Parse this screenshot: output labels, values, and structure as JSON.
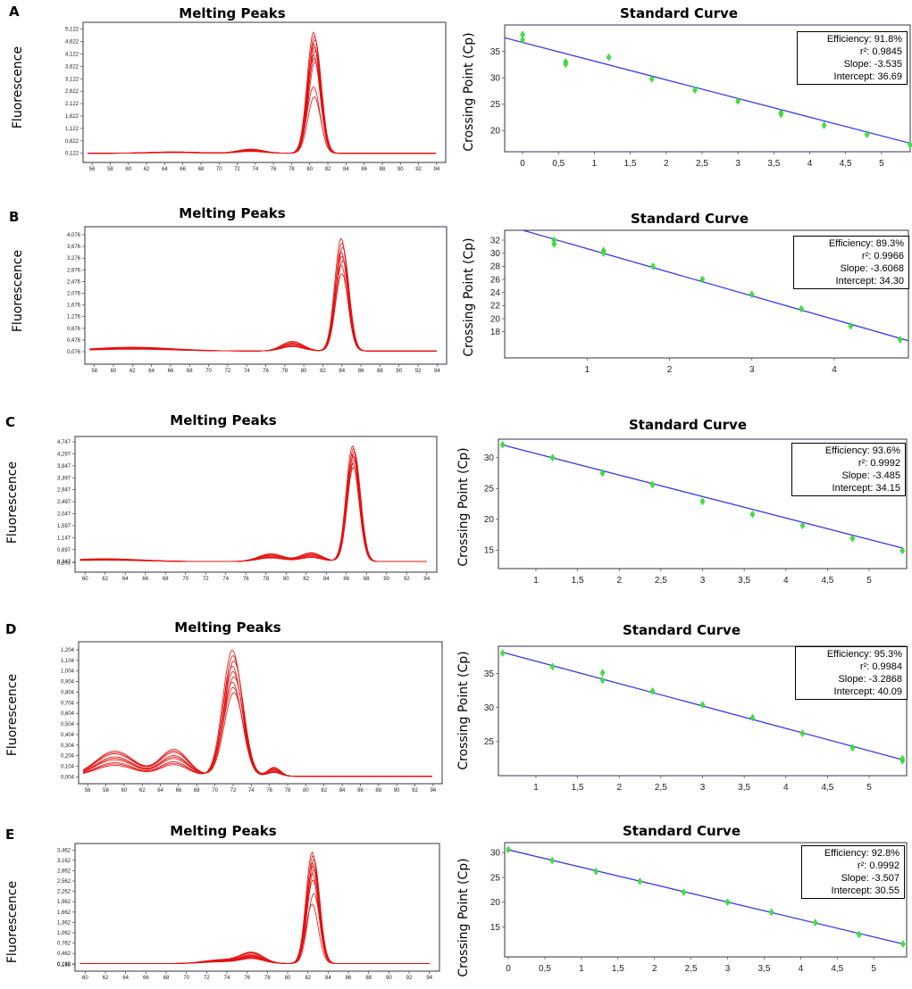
{
  "colors": {
    "melt_line": "#e41010",
    "std_line": "#3a3ae6",
    "std_point": "#39e639",
    "frame": "#33334a"
  },
  "panels": [
    {
      "letter": "A",
      "melting": {
        "title": "Melting Peaks",
        "ylabel": "Fluorescence"
      },
      "standard": {
        "title": "Standard Curve",
        "ylabel": "Crossing Point (Cp)",
        "stats": {
          "efficiency": "Efficiency: 91.8%",
          "r2": "r²: 0.9845",
          "slope": "Slope: -3.535",
          "intercept": "Intercept: 36.69"
        }
      }
    },
    {
      "letter": "B",
      "melting": {
        "title": "Melting Peaks",
        "ylabel": "Fluorescence"
      },
      "standard": {
        "title": "Standard Curve",
        "ylabel": "Crossing Point (Cp)",
        "stats": {
          "efficiency": "Efficiency: 89.3%",
          "r2": "r²: 0.9966",
          "slope": "Slope: -3.6068",
          "intercept": "Intercept: 34.30"
        }
      }
    },
    {
      "letter": "C",
      "melting": {
        "title": "Melting Peaks",
        "ylabel": "Fluorescence"
      },
      "standard": {
        "title": "Standard Curve",
        "ylabel": "Crossing Point (Cp)",
        "stats": {
          "efficiency": "Efficiency: 93.6%",
          "r2": "r²: 0.9992",
          "slope": "Slope: -3.485",
          "intercept": "Intercept: 34.15"
        }
      }
    },
    {
      "letter": "D",
      "melting": {
        "title": "Melting Peaks",
        "ylabel": "Fluorescence"
      },
      "standard": {
        "title": "Standard Curve",
        "ylabel": "Crossing Point (Cp)",
        "stats": {
          "efficiency": "Efficiency: 95.3%",
          "r2": "r²: 0.9984",
          "slope": "Slope: -3.2868",
          "intercept": "Intercept: 40.09"
        }
      }
    },
    {
      "letter": "E",
      "melting": {
        "title": "Melting Peaks",
        "ylabel": "Fluorescence"
      },
      "standard": {
        "title": "Standard Curve",
        "ylabel": "Crossing Point (Cp)",
        "stats": {
          "efficiency": "Efficiency: 92.8%",
          "r2": "r²: 0.9992",
          "slope": "Slope: -3.507",
          "intercept": "Intercept: 30.55"
        }
      }
    }
  ],
  "chart_data": [
    {
      "id": "A-melt",
      "type": "line",
      "title": "Melting Peaks",
      "xlabel": "",
      "ylabel": "Fluorescence",
      "xlim": [
        55,
        95
      ],
      "ylim": [
        -0.25,
        5.4
      ],
      "xticks": [
        "56",
        "58",
        "60",
        "62",
        "64",
        "66",
        "68",
        "70",
        "72",
        "74",
        "76",
        "78",
        "80",
        "82",
        "84",
        "86",
        "88",
        "90",
        "92",
        "94"
      ],
      "yticks": [
        "0,122",
        "0,622",
        "1,122",
        "1,622",
        "2,122",
        "2,622",
        "3,122",
        "3,622",
        "4,122",
        "4,622",
        "5,122"
      ],
      "peak_x": 80.5,
      "peak_width": 1.0,
      "peak_heights": [
        5.0,
        4.85,
        4.7,
        4.55,
        4.4,
        4.25,
        4.1,
        3.95,
        3.8,
        2.8,
        2.4
      ],
      "baseline": 0.12,
      "bumps": [
        {
          "x": 73.5,
          "w": 2.0,
          "h": 0.12
        },
        {
          "x": 65,
          "w": 4.0,
          "h": 0.04
        }
      ]
    },
    {
      "id": "A-std",
      "type": "scatter",
      "title": "Standard Curve",
      "xlabel": "",
      "ylabel": "Crossing Point (Cp)",
      "xlim": [
        -0.25,
        5.4
      ],
      "ylim": [
        16,
        40
      ],
      "xticks": [
        "0",
        "0,5",
        "1",
        "1,5",
        "2",
        "2,5",
        "3",
        "3,5",
        "4",
        "4,5",
        "5"
      ],
      "yticks": [
        "20",
        "25",
        "30",
        "35"
      ],
      "points": [
        [
          0,
          38.2
        ],
        [
          0,
          37.2
        ],
        [
          0.6,
          33.0
        ],
        [
          0.6,
          32.6
        ],
        [
          1.2,
          33.9
        ],
        [
          1.8,
          29.8
        ],
        [
          2.4,
          27.7
        ],
        [
          3.0,
          25.6
        ],
        [
          3.6,
          23.4
        ],
        [
          3.6,
          23.1
        ],
        [
          4.2,
          21.0
        ],
        [
          4.8,
          19.3
        ],
        [
          5.4,
          17.3
        ]
      ],
      "fit": {
        "slope": -3.535,
        "intercept": 36.69,
        "x_range": [
          -0.25,
          5.4
        ]
      }
    },
    {
      "id": "B-melt",
      "type": "line",
      "title": "Melting Peaks",
      "xlabel": "",
      "ylabel": "Fluorescence",
      "xlim": [
        57,
        95
      ],
      "ylim": [
        -0.35,
        4.35
      ],
      "xticks": [
        "58",
        "60",
        "62",
        "64",
        "66",
        "68",
        "70",
        "72",
        "74",
        "76",
        "78",
        "80",
        "82",
        "84",
        "86",
        "88",
        "90",
        "92",
        "94"
      ],
      "yticks": [
        "0,076",
        "0,476",
        "0,876",
        "1,276",
        "1,676",
        "2,076",
        "2,476",
        "2,876",
        "3,276",
        "3,676",
        "4,076"
      ],
      "peak_x": 84.0,
      "peak_width": 0.95,
      "peak_heights": [
        3.95,
        3.8,
        3.65,
        3.5,
        3.35,
        3.2,
        3.05,
        2.75
      ],
      "baseline": 0.1,
      "bumps": [
        {
          "x": 78.8,
          "w": 1.6,
          "h": 0.25
        },
        {
          "x": 62,
          "w": 6.0,
          "h": 0.1
        }
      ]
    },
    {
      "id": "B-std",
      "type": "scatter",
      "title": "Standard Curve",
      "xlabel": "",
      "ylabel": "Crossing Point (Cp)",
      "xlim": [
        0,
        4.9
      ],
      "ylim": [
        14,
        33.5
      ],
      "xticks": [
        "1",
        "2",
        "3",
        "4"
      ],
      "yticks": [
        "18",
        "20",
        "22",
        "24",
        "26",
        "28",
        "30",
        "32"
      ],
      "points": [
        [
          0.6,
          32.0
        ],
        [
          0.6,
          31.4
        ],
        [
          1.2,
          30.4
        ],
        [
          1.2,
          30.0
        ],
        [
          1.8,
          28.0
        ],
        [
          2.4,
          26.0
        ],
        [
          3.0,
          23.7
        ],
        [
          3.6,
          21.5
        ],
        [
          4.2,
          18.9
        ],
        [
          4.8,
          16.8
        ]
      ],
      "fit": {
        "slope": -3.6068,
        "intercept": 34.3,
        "x_range": [
          0,
          4.9
        ]
      }
    },
    {
      "id": "C-melt",
      "type": "line",
      "title": "Melting Peaks",
      "xlabel": "",
      "ylabel": "Fluorescence",
      "xlim": [
        59,
        95
      ],
      "ylim": [
        -0.15,
        4.95
      ],
      "xticks": [
        "60",
        "62",
        "64",
        "66",
        "68",
        "70",
        "72",
        "74",
        "76",
        "78",
        "80",
        "82",
        "84",
        "86",
        "88",
        "90",
        "92",
        "94"
      ],
      "yticks": [
        "0,203",
        "0,247",
        "0,697",
        "1,147",
        "1,597",
        "2,047",
        "2,497",
        "2,947",
        "3,397",
        "3,847",
        "4,297",
        "4,747"
      ],
      "peak_x": 86.7,
      "peak_width": 0.9,
      "peak_heights": [
        4.6,
        4.5,
        4.4,
        4.3,
        4.2,
        4.1,
        3.95,
        3.8
      ],
      "baseline": 0.25,
      "bumps": [
        {
          "x": 78.5,
          "w": 1.8,
          "h": 0.22
        },
        {
          "x": 82.5,
          "w": 1.5,
          "h": 0.25
        },
        {
          "x": 62,
          "w": 5.0,
          "h": 0.08
        }
      ]
    },
    {
      "id": "C-std",
      "type": "scatter",
      "title": "Standard Curve",
      "xlabel": "",
      "ylabel": "Crossing Point (Cp)",
      "xlim": [
        0.55,
        5.45
      ],
      "ylim": [
        12,
        33
      ],
      "xticks": [
        "1",
        "1,5",
        "2",
        "2,5",
        "3",
        "3,5",
        "4",
        "4,5",
        "5"
      ],
      "yticks": [
        "15",
        "20",
        "25",
        "30"
      ],
      "points": [
        [
          0.6,
          32.1
        ],
        [
          1.2,
          30.0
        ],
        [
          1.8,
          27.5
        ],
        [
          2.4,
          25.6
        ],
        [
          3.0,
          22.9
        ],
        [
          3.6,
          20.8
        ],
        [
          4.2,
          19.0
        ],
        [
          4.8,
          16.9
        ],
        [
          5.4,
          14.9
        ]
      ],
      "fit": {
        "slope": -3.485,
        "intercept": 34.15,
        "x_range": [
          0.6,
          5.4
        ]
      }
    },
    {
      "id": "D-melt",
      "type": "line",
      "title": "Melting Peaks",
      "xlabel": "",
      "ylabel": "Fluorescence",
      "xlim": [
        55,
        95
      ],
      "ylim": [
        -0.06,
        1.28
      ],
      "xticks": [
        "56",
        "58",
        "60",
        "62",
        "64",
        "66",
        "68",
        "70",
        "72",
        "74",
        "76",
        "78",
        "80",
        "82",
        "84",
        "86",
        "88",
        "90",
        "92",
        "94"
      ],
      "yticks": [
        "0,004",
        "0,104",
        "0,204",
        "0,304",
        "0,404",
        "0,504",
        "0,604",
        "0,704",
        "0,804",
        "0,904",
        "1,004",
        "1,104",
        "1,204"
      ],
      "peak_x": 72.0,
      "peak_width": 1.5,
      "peak_heights": [
        1.2,
        1.15,
        1.1,
        1.05,
        1.0,
        0.95,
        0.9,
        0.85,
        0.8
      ],
      "baseline": 0.01,
      "bumps": [
        {
          "x": 59,
          "w": 3.0,
          "h": 0.17
        },
        {
          "x": 65.5,
          "w": 2.2,
          "h": 0.18
        },
        {
          "x": 76.5,
          "w": 1.0,
          "h": 0.06
        }
      ]
    },
    {
      "id": "D-std",
      "type": "scatter",
      "title": "Standard Curve",
      "xlabel": "",
      "ylabel": "Crossing Point (Cp)",
      "xlim": [
        0.55,
        5.45
      ],
      "ylim": [
        20,
        39
      ],
      "xticks": [
        "1",
        "1,5",
        "2",
        "2,5",
        "3",
        "3,5",
        "4",
        "4,5",
        "5"
      ],
      "yticks": [
        "25",
        "30",
        "35"
      ],
      "points": [
        [
          0.6,
          38.0
        ],
        [
          1.2,
          36.0
        ],
        [
          1.8,
          35.1
        ],
        [
          1.8,
          34.0
        ],
        [
          2.4,
          32.4
        ],
        [
          3.0,
          30.4
        ],
        [
          3.6,
          28.5
        ],
        [
          4.2,
          26.2
        ],
        [
          4.8,
          24.1
        ],
        [
          5.4,
          22.2
        ],
        [
          5.4,
          22.5
        ]
      ],
      "fit": {
        "slope": -3.2868,
        "intercept": 40.09,
        "x_range": [
          0.6,
          5.4
        ]
      }
    },
    {
      "id": "E-melt",
      "type": "line",
      "title": "Melting Peaks",
      "xlabel": "",
      "ylabel": "Fluorescence",
      "xlim": [
        59,
        95
      ],
      "ylim": [
        -0.05,
        3.65
      ],
      "xticks": [
        "60",
        "62",
        "64",
        "66",
        "68",
        "70",
        "72",
        "74",
        "76",
        "78",
        "80",
        "82",
        "84",
        "86",
        "88",
        "90",
        "92",
        "94"
      ],
      "yticks": [
        "0,138",
        "0,162",
        "0,462",
        "0,762",
        "1,062",
        "1,362",
        "1,662",
        "1,962",
        "2,262",
        "2,562",
        "2,862",
        "3,162",
        "3,462"
      ],
      "peak_x": 82.5,
      "peak_width": 0.85,
      "peak_heights": [
        3.4,
        3.3,
        3.2,
        3.1,
        3.0,
        2.9,
        2.8,
        2.6,
        2.2,
        1.9
      ],
      "baseline": 0.17,
      "bumps": [
        {
          "x": 76.5,
          "w": 1.6,
          "h": 0.22
        },
        {
          "x": 73.5,
          "w": 2.5,
          "h": 0.08
        }
      ]
    },
    {
      "id": "E-std",
      "type": "scatter",
      "title": "Standard Curve",
      "xlabel": "",
      "ylabel": "Crossing Point (Cp)",
      "xlim": [
        -0.05,
        5.45
      ],
      "ylim": [
        9,
        32
      ],
      "xticks": [
        "0",
        "0,5",
        "1",
        "1,5",
        "2",
        "2,5",
        "3",
        "3,5",
        "4",
        "4,5",
        "5"
      ],
      "yticks": [
        "15",
        "20",
        "25",
        "30"
      ],
      "points": [
        [
          0,
          30.6
        ],
        [
          0.6,
          28.4
        ],
        [
          1.2,
          26.2
        ],
        [
          1.8,
          24.2
        ],
        [
          2.4,
          22.0
        ],
        [
          3.0,
          20.0
        ],
        [
          3.6,
          18.0
        ],
        [
          4.2,
          15.9
        ],
        [
          4.8,
          13.5
        ],
        [
          5.4,
          11.6
        ]
      ],
      "fit": {
        "slope": -3.507,
        "intercept": 30.55,
        "x_range": [
          0,
          5.4
        ]
      }
    }
  ]
}
